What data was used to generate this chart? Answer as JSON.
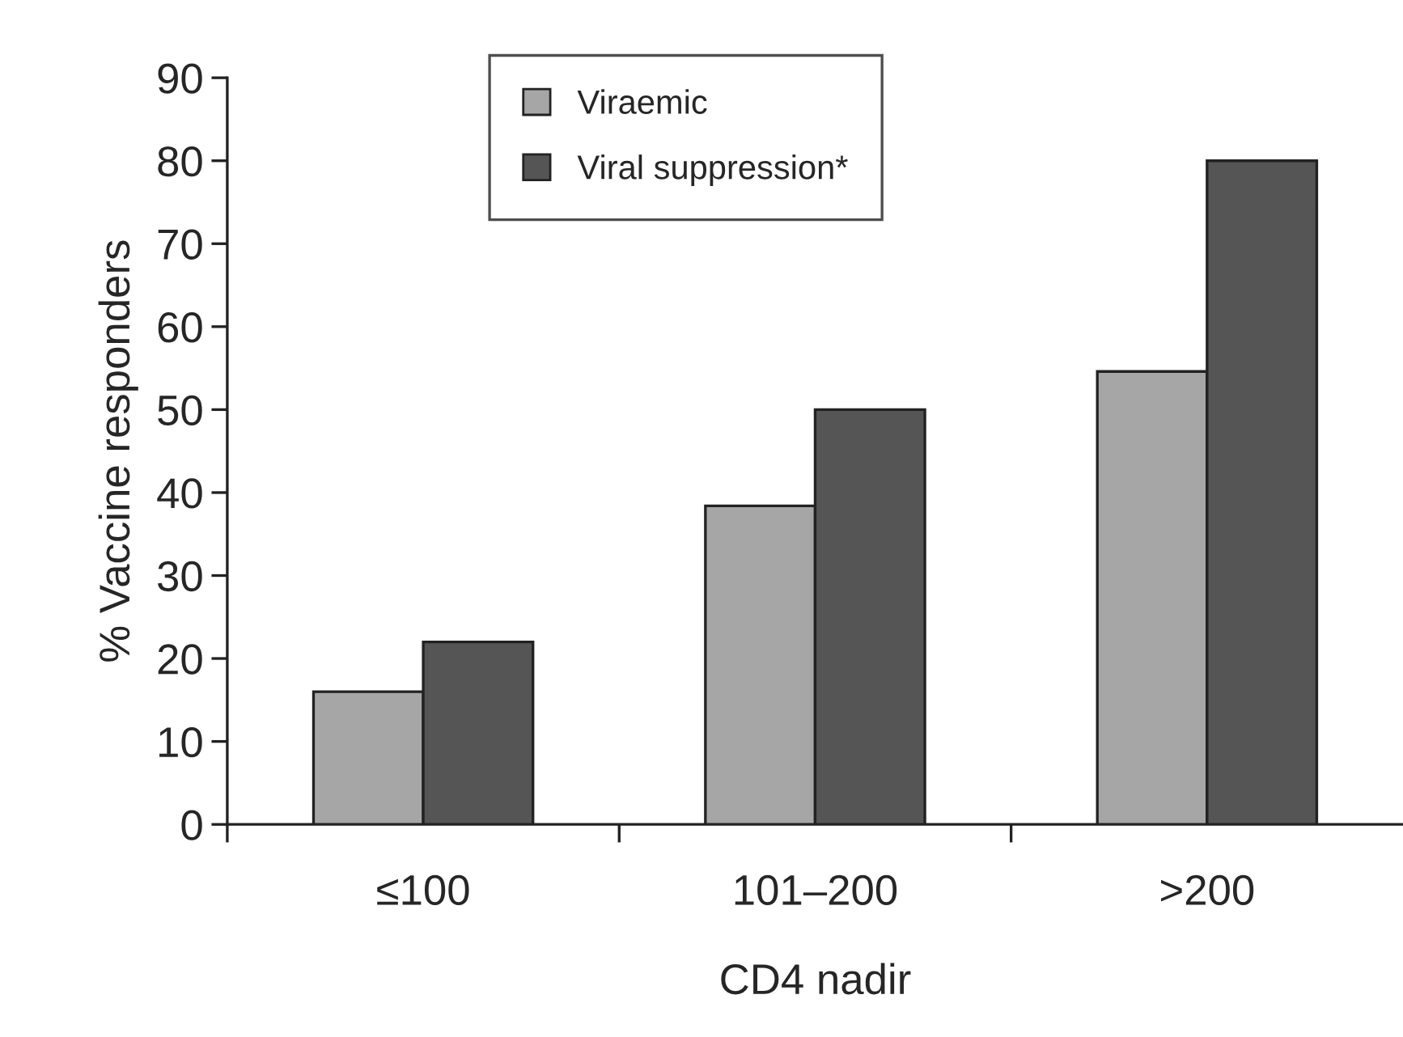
{
  "chart_data": {
    "type": "bar",
    "xlabel": "CD4 nadir",
    "ylabel": "% Vaccine responders",
    "categories": [
      "≤100",
      "101–200",
      ">200"
    ],
    "series": [
      {
        "name": "Viraemic",
        "color": "#a6a6a6",
        "values": [
          16,
          38.4,
          54.6
        ]
      },
      {
        "name": "Viral suppression*",
        "color": "#555555",
        "values": [
          22,
          50,
          80
        ]
      }
    ],
    "ylim": [
      0,
      90
    ],
    "yticks": [
      0,
      10,
      20,
      30,
      40,
      50,
      60,
      70,
      80,
      90
    ],
    "grid": false,
    "legend": "top"
  }
}
